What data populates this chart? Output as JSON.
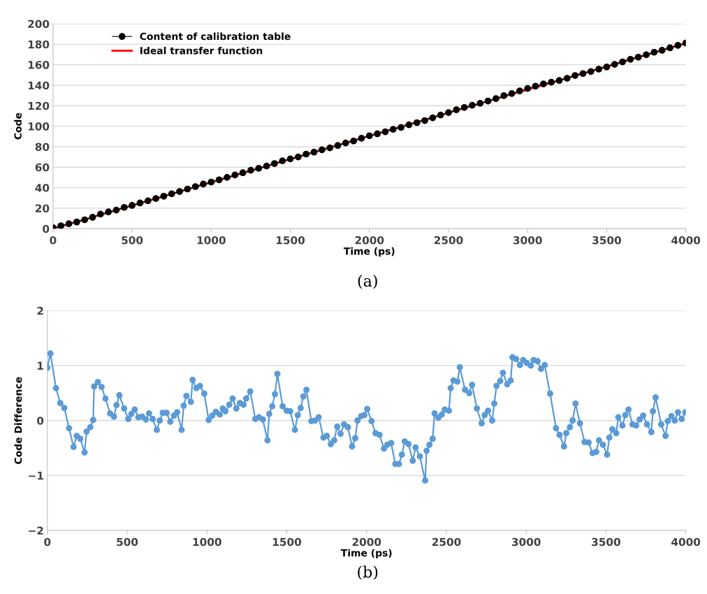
{
  "chart_data": [
    {
      "type": "line",
      "xlabel": "Time (ps)",
      "ylabel": "Code",
      "xlim": [
        0,
        4000
      ],
      "xticks": [
        0,
        500,
        1000,
        1500,
        2000,
        2500,
        3000,
        3500,
        4000
      ],
      "ylim": [
        0,
        200
      ],
      "yticks": [
        0,
        20,
        40,
        60,
        80,
        100,
        120,
        140,
        160,
        180,
        200
      ],
      "grid": "y",
      "legend": "top left",
      "annotations": [
        "(a)"
      ],
      "series": [
        {
          "name": "Content of calibration table",
          "color": "#000000",
          "marker": "circle",
          "x": [
            0,
            50,
            100,
            150,
            200,
            250,
            300,
            350,
            400,
            450,
            500,
            550,
            600,
            650,
            700,
            750,
            800,
            850,
            900,
            950,
            1000,
            1050,
            1100,
            1150,
            1200,
            1250,
            1300,
            1350,
            1400,
            1450,
            1500,
            1550,
            1600,
            1650,
            1700,
            1750,
            1800,
            1850,
            1900,
            1950,
            2000,
            2050,
            2100,
            2150,
            2200,
            2250,
            2300,
            2350,
            2400,
            2450,
            2500,
            2550,
            2600,
            2650,
            2700,
            2750,
            2800,
            2850,
            2900,
            2950,
            3000,
            3050,
            3100,
            3150,
            3200,
            3250,
            3300,
            3350,
            3400,
            3450,
            3500,
            3550,
            3600,
            3650,
            3700,
            3750,
            3800,
            3850,
            3900,
            3950,
            4000
          ],
          "values": [
            1.0,
            2.9,
            4.8,
            6.5,
            8.7,
            11.1,
            14.2,
            16.4,
            18.2,
            20.8,
            22.7,
            25.1,
            27.2,
            29.5,
            31.7,
            34.1,
            36.3,
            38.7,
            41.1,
            43.6,
            45.5,
            47.7,
            50.0,
            52.4,
            54.6,
            57.0,
            58.9,
            61.1,
            63.6,
            66.2,
            68.1,
            70.0,
            72.8,
            74.7,
            77.0,
            78.9,
            81.2,
            83.6,
            85.6,
            88.3,
            90.7,
            92.6,
            94.6,
            96.9,
            98.8,
            101.4,
            103.5,
            105.5,
            108.2,
            110.9,
            113.3,
            116.1,
            118.3,
            120.5,
            122.3,
            124.6,
            127.0,
            129.8,
            131.9,
            134.5,
            136.8,
            139.1,
            141.3,
            143.0,
            144.6,
            146.8,
            149.5,
            151.4,
            153.4,
            155.7,
            157.8,
            160.4,
            162.8,
            165.3,
            167.4,
            169.7,
            172.2,
            174.1,
            176.5,
            178.9,
            181.2
          ]
        },
        {
          "name": "Ideal transfer function",
          "color": "#ff0000",
          "x": [
            0,
            4000
          ],
          "values": [
            0,
            181
          ]
        }
      ]
    },
    {
      "type": "line",
      "xlabel": "Time (ps)",
      "ylabel": "Code Difference",
      "xlim": [
        0,
        4000
      ],
      "xticks": [
        0,
        500,
        1000,
        1500,
        2000,
        2500,
        3000,
        3500,
        4000
      ],
      "ylim": [
        -2,
        2
      ],
      "yticks": [
        {
          "value": -2,
          "label": "−2"
        },
        {
          "value": -1,
          "label": "−1"
        },
        0,
        1,
        2
      ],
      "grid": "y",
      "annotations": [
        "(b)"
      ],
      "series": [
        {
          "color": "#5b9bd5",
          "marker": "circle",
          "x": [
            0,
            19,
            54,
            81,
            106,
            136,
            164,
            184,
            206,
            233,
            246,
            269,
            287,
            293,
            316,
            340,
            364,
            393,
            417,
            433,
            451,
            481,
            507,
            526,
            547,
            570,
            594,
            617,
            637,
            660,
            686,
            704,
            723,
            747,
            770,
            793,
            813,
            841,
            854,
            871,
            899,
            910,
            934,
            956,
            983,
            1011,
            1033,
            1056,
            1080,
            1099,
            1116,
            1140,
            1161,
            1184,
            1206,
            1229,
            1246,
            1271,
            1303,
            1326,
            1350,
            1379,
            1390,
            1409,
            1426,
            1441,
            1474,
            1499,
            1521,
            1551,
            1569,
            1587,
            1604,
            1623,
            1654,
            1677,
            1700,
            1730,
            1751,
            1776,
            1797,
            1816,
            1837,
            1859,
            1883,
            1909,
            1929,
            1943,
            1966,
            1986,
            2004,
            2031,
            2056,
            2081,
            2109,
            2130,
            2154,
            2180,
            2203,
            2221,
            2239,
            2263,
            2289,
            2307,
            2334,
            2367,
            2376,
            2394,
            2414,
            2426,
            2450,
            2471,
            2490,
            2516,
            2527,
            2544,
            2569,
            2584,
            2617,
            2643,
            2661,
            2691,
            2721,
            2740,
            2761,
            2787,
            2800,
            2814,
            2837,
            2854,
            2881,
            2903,
            2914,
            2937,
            2961,
            2981,
            3004,
            3029,
            3046,
            3071,
            3093,
            3116,
            3150,
            3187,
            3209,
            3237,
            3251,
            3274,
            3291,
            3309,
            3337,
            3366,
            3391,
            3416,
            3439,
            3456,
            3481,
            3507,
            3521,
            3540,
            3564,
            3577,
            3603,
            3621,
            3641,
            3666,
            3689,
            3711,
            3733,
            3757,
            3784,
            3794,
            3811,
            3846,
            3873,
            3887,
            3910,
            3931,
            3951,
            3974,
            3997
          ],
          "values": [
            0.96,
            1.22,
            0.59,
            0.32,
            0.23,
            -0.14,
            -0.48,
            -0.28,
            -0.33,
            -0.58,
            -0.2,
            -0.12,
            0.01,
            0.62,
            0.7,
            0.61,
            0.4,
            0.13,
            0.07,
            0.28,
            0.46,
            0.22,
            0.03,
            0.12,
            0.2,
            0.06,
            0.07,
            0.02,
            0.13,
            0.03,
            -0.17,
            0.0,
            0.14,
            0.14,
            -0.02,
            0.09,
            0.15,
            -0.17,
            0.27,
            0.45,
            0.34,
            0.74,
            0.59,
            0.63,
            0.49,
            0.01,
            0.09,
            0.16,
            0.11,
            0.22,
            0.17,
            0.29,
            0.4,
            0.22,
            0.32,
            0.29,
            0.4,
            0.53,
            0.03,
            0.06,
            0.02,
            -0.36,
            0.12,
            0.26,
            0.48,
            0.85,
            0.26,
            0.18,
            0.17,
            -0.17,
            0.1,
            0.23,
            0.44,
            0.56,
            -0.01,
            0.0,
            0.06,
            -0.31,
            -0.28,
            -0.43,
            -0.36,
            -0.11,
            -0.24,
            -0.07,
            -0.12,
            -0.47,
            -0.32,
            0.0,
            0.08,
            0.1,
            0.21,
            -0.01,
            -0.23,
            -0.26,
            -0.51,
            -0.44,
            -0.41,
            -0.79,
            -0.79,
            -0.62,
            -0.38,
            -0.43,
            -0.73,
            -0.49,
            -0.65,
            -1.09,
            -0.55,
            -0.44,
            -0.33,
            0.13,
            0.05,
            0.11,
            0.2,
            0.18,
            0.59,
            0.73,
            0.71,
            0.97,
            0.56,
            0.5,
            0.65,
            0.22,
            -0.05,
            0.1,
            0.18,
            0.0,
            0.31,
            0.63,
            0.72,
            0.87,
            0.66,
            0.73,
            1.15,
            1.12,
            1.01,
            1.1,
            1.05,
            1.0,
            1.1,
            1.08,
            0.94,
            1.01,
            0.49,
            -0.14,
            -0.26,
            -0.47,
            -0.23,
            -0.12,
            0.0,
            0.31,
            -0.05,
            -0.39,
            -0.4,
            -0.59,
            -0.57,
            -0.36,
            -0.44,
            -0.62,
            -0.31,
            -0.16,
            -0.23,
            0.06,
            -0.09,
            0.1,
            0.2,
            -0.07,
            -0.09,
            0.02,
            0.09,
            -0.07,
            -0.21,
            0.17,
            0.42,
            -0.07,
            -0.28,
            -0.01,
            0.08,
            0.0,
            0.15,
            0.03,
            0.15
          ]
        }
      ]
    }
  ]
}
